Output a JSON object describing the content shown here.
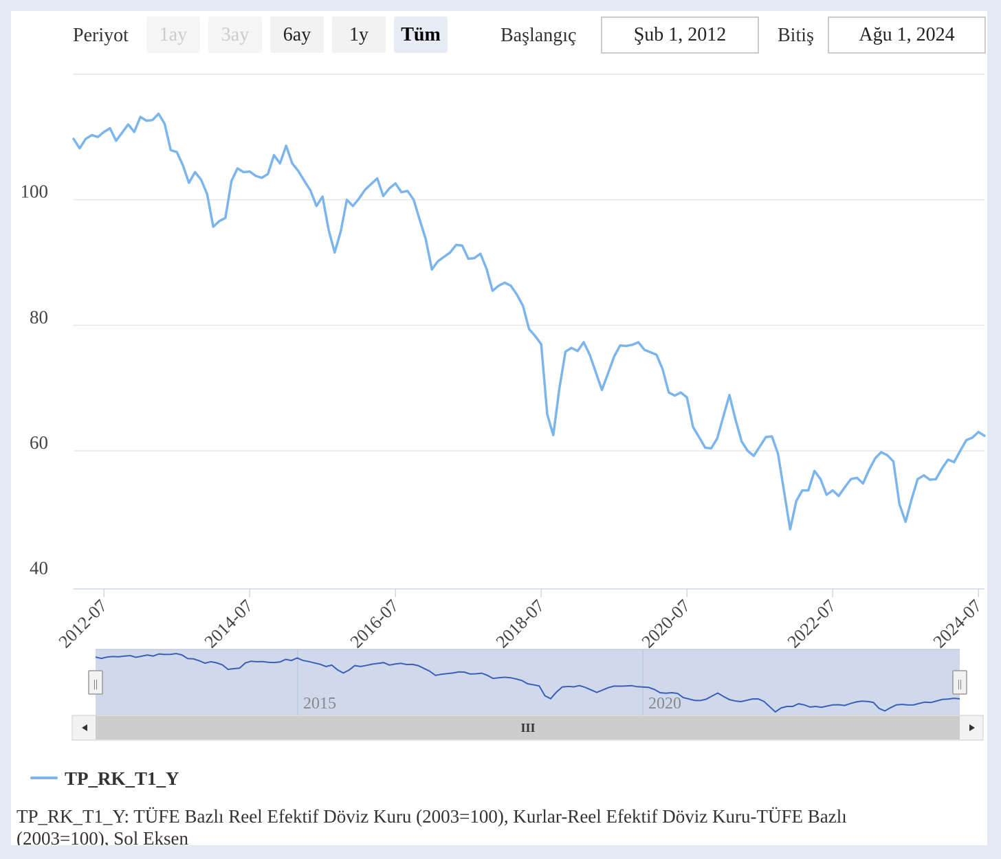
{
  "range_selector": {
    "label": "Periyot",
    "buttons": [
      {
        "label": "1ay",
        "state": "disabled"
      },
      {
        "label": "3ay",
        "state": "disabled"
      },
      {
        "label": "6ay",
        "state": "normal"
      },
      {
        "label": "1y",
        "state": "normal"
      },
      {
        "label": "Tüm",
        "state": "active"
      }
    ],
    "start_label": "Başlangıç",
    "start_value": "Şub 1, 2012",
    "end_label": "Bitiş",
    "end_value": "Ağu 1, 2024"
  },
  "navigator": {
    "labels": [
      "2015",
      "2020"
    ],
    "scrollbar_grip": "III",
    "handle_grip": "||"
  },
  "legend": {
    "name": "TP_RK_T1_Y"
  },
  "description": "TP_RK_T1_Y: TÜFE Bazlı Reel Efektif Döviz Kuru (2003=100), Kurlar-Reel Efektif Döviz Kuru-TÜFE Bazlı (2003=100), Sol Eksen",
  "colors": {
    "series": "#7cb5ec",
    "navigator_series": "#3a5fb5",
    "navigator_mask": "#d0d9ec",
    "grid": "#e6e6e6",
    "axis": "#ccd6eb",
    "background": "#e3eaf5"
  },
  "chart_data": {
    "type": "line",
    "series": [
      {
        "name": "TP_RK_T1_Y",
        "start": "2012-02",
        "frequency": "monthly",
        "values": [
          109.7,
          108.2,
          109.7,
          110.3,
          110.0,
          110.8,
          111.4,
          109.4,
          110.7,
          112.0,
          110.8,
          113.2,
          112.6,
          112.7,
          113.7,
          112.1,
          107.9,
          107.6,
          105.5,
          102.7,
          104.4,
          103.2,
          100.9,
          95.7,
          96.6,
          97.1,
          103.0,
          105.0,
          104.4,
          104.5,
          103.8,
          103.5,
          104.1,
          107.1,
          105.8,
          108.6,
          105.8,
          104.6,
          103.0,
          101.5,
          99.0,
          100.5,
          95.2,
          91.6,
          95.0,
          100.0,
          99.0,
          100.2,
          101.6,
          102.5,
          103.4,
          100.6,
          101.8,
          102.6,
          101.2,
          101.4,
          100.0,
          96.8,
          93.7,
          88.9,
          90.2,
          90.9,
          91.6,
          92.8,
          92.7,
          90.6,
          90.7,
          91.4,
          89.0,
          85.5,
          86.3,
          86.8,
          86.3,
          84.9,
          83.1,
          79.4,
          78.3,
          77.0,
          65.8,
          62.5,
          70.0,
          75.8,
          76.4,
          75.9,
          77.3,
          75.3,
          72.5,
          69.7,
          72.3,
          75.0,
          76.8,
          76.7,
          76.9,
          77.3,
          76.1,
          75.7,
          75.3,
          73.0,
          69.3,
          68.8,
          69.3,
          68.5,
          63.8,
          62.2,
          60.5,
          60.4,
          62.0,
          65.5,
          68.9,
          65.0,
          61.5,
          60.0,
          59.2,
          60.7,
          62.2,
          62.3,
          59.5,
          53.5,
          47.5,
          52.0,
          53.7,
          53.7,
          56.8,
          55.5,
          53.0,
          53.7,
          52.8,
          54.2,
          55.5,
          55.7,
          54.8,
          57.0,
          58.8,
          59.8,
          59.3,
          58.3,
          51.5,
          48.7,
          52.3,
          55.5,
          56.1,
          55.4,
          55.5,
          57.2,
          58.6,
          58.2,
          60.0,
          61.7,
          62.1,
          63.0,
          62.4
        ]
      }
    ],
    "x_tick_labels": [
      "2012-07",
      "2014-07",
      "2016-07",
      "2018-07",
      "2020-07",
      "2022-07",
      "2024-07"
    ],
    "y_ticks": [
      40,
      60,
      80,
      100
    ],
    "ylim": [
      38,
      120
    ],
    "grid": true,
    "legend_position": "bottom-left"
  }
}
